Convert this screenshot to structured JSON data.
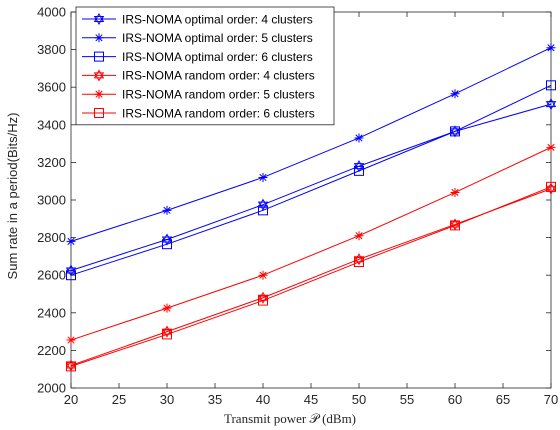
{
  "chart_data": {
    "type": "line",
    "xlabel": "Transmit power 𝒫 (dBm)",
    "ylabel": "Sum rate in a period(Bits/Hz)",
    "xlim": [
      20,
      70
    ],
    "ylim": [
      2000,
      4000
    ],
    "xticks": [
      20,
      25,
      30,
      35,
      40,
      45,
      50,
      55,
      60,
      65,
      70
    ],
    "yticks": [
      2000,
      2200,
      2400,
      2600,
      2800,
      3000,
      3200,
      3400,
      3600,
      3800,
      4000
    ],
    "grid": false,
    "legend_position": "top-left",
    "x": [
      20,
      30,
      40,
      50,
      60,
      70
    ],
    "series": [
      {
        "name": "IRS-NOMA optimal order: 4 clusters",
        "color": "#0000ff",
        "marker": "hexagram",
        "values": [
          2625,
          2790,
          2975,
          3180,
          3365,
          3510
        ]
      },
      {
        "name": "IRS-NOMA optimal order: 5 clusters",
        "color": "#0000ff",
        "marker": "asterisk",
        "values": [
          2780,
          2945,
          3120,
          3330,
          3565,
          3810
        ]
      },
      {
        "name": "IRS-NOMA optimal order: 6 clusters",
        "color": "#0000ff",
        "marker": "square",
        "values": [
          2600,
          2765,
          2945,
          3155,
          3365,
          3610
        ]
      },
      {
        "name": "IRS-NOMA random order: 4 clusters",
        "color": "#ff0000",
        "marker": "hexagram",
        "values": [
          2120,
          2300,
          2480,
          2685,
          2870,
          3060
        ]
      },
      {
        "name": "IRS-NOMA random order: 5 clusters",
        "color": "#ff0000",
        "marker": "asterisk",
        "values": [
          2255,
          2425,
          2600,
          2810,
          3040,
          3280
        ]
      },
      {
        "name": "IRS-NOMA random order: 6 clusters",
        "color": "#ff0000",
        "marker": "square",
        "values": [
          2115,
          2285,
          2465,
          2670,
          2865,
          3070
        ]
      }
    ]
  }
}
